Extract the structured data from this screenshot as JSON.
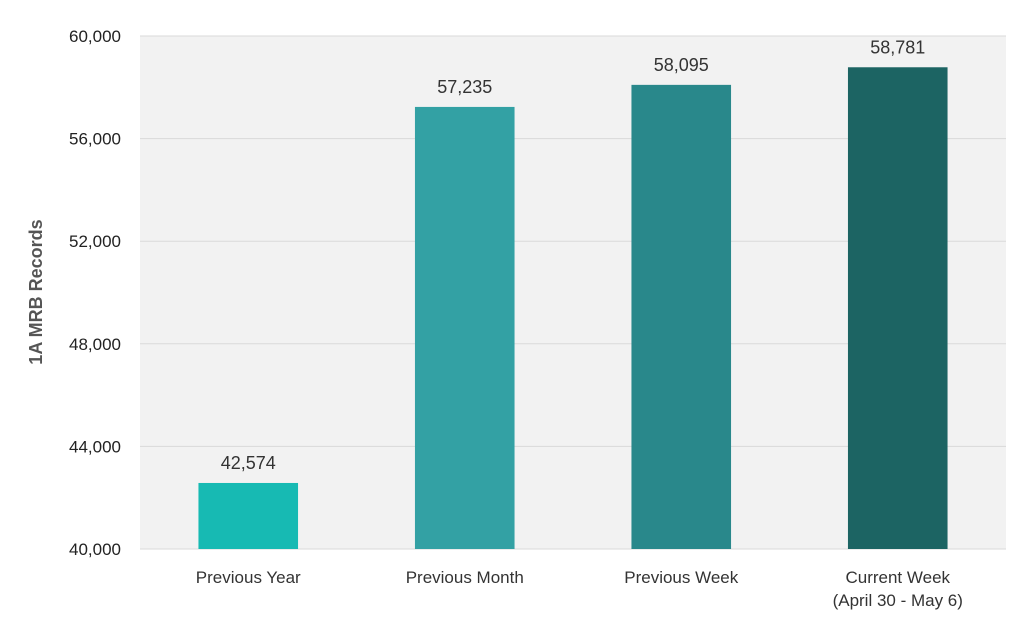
{
  "chart_data": {
    "type": "bar",
    "title": "",
    "xlabel": "",
    "ylabel": "1A MRB Records",
    "categories": [
      [
        "Previous Year"
      ],
      [
        "Previous Month"
      ],
      [
        "Previous Week"
      ],
      [
        "Current Week",
        "(April 30 - May 6)"
      ]
    ],
    "values": [
      42574,
      57235,
      58095,
      58781
    ],
    "value_labels": [
      "42,574",
      "57,235",
      "58,095",
      "58,781"
    ],
    "ylim": [
      40000,
      60000
    ],
    "yticks": [
      40000,
      44000,
      48000,
      52000,
      56000,
      60000
    ],
    "ytick_labels": [
      "40,000",
      "44,000",
      "48,000",
      "52,000",
      "56,000",
      "60,000"
    ],
    "grid": true,
    "legend": "none",
    "colors": [
      "#17bab3",
      "#33a1a4",
      "#29888b",
      "#1c6463"
    ],
    "plot_background": "#f2f2f2",
    "gridline_color": "#d9d9d9"
  }
}
